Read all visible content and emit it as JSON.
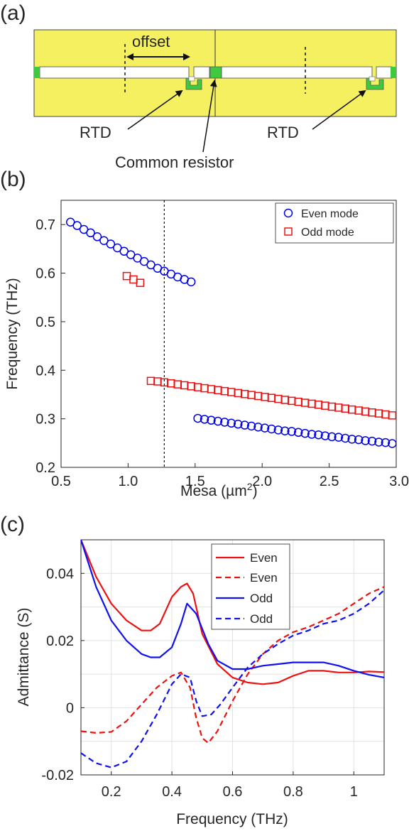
{
  "panel_a": {
    "label": "(a)",
    "offset_label": "offset",
    "rtd_left": "RTD",
    "rtd_right": "RTD",
    "common_resistor": "Common resistor"
  },
  "panel_b": {
    "label": "(b)",
    "xlabel": "Mesa (µm",
    "xlabel_sup": "2",
    "xlabel_tail": ")",
    "ylabel": "Frequency (THz)",
    "legend": [
      "Even mode",
      "Odd mode"
    ]
  },
  "panel_c": {
    "label": "(c)",
    "xlabel": "Frequency (THz)",
    "ylabel": "Admittance (S)",
    "legend": [
      "Even",
      "Even",
      "Odd",
      "Odd"
    ]
  },
  "colors": {
    "even": "#0000ee",
    "odd": "#ee1111",
    "even_c": "#ee1111",
    "odd_c": "#1111ee",
    "device_yellow": "#f4f060",
    "contact_green": "#3fc93f"
  },
  "chart_data": [
    {
      "id": "b",
      "type": "scatter",
      "xlabel": "Mesa (µm²)",
      "ylabel": "Frequency (THz)",
      "xlim": [
        0.5,
        3.0
      ],
      "ylim": [
        0.2,
        0.75
      ],
      "xticks": [
        "0.5",
        "1.0",
        "1.5",
        "2.0",
        "2.5",
        "3.0"
      ],
      "yticks": [
        "0.2",
        "0.3",
        "0.4",
        "0.5",
        "0.6",
        "0.7"
      ],
      "vline_x": 1.27,
      "grid": false,
      "legend_position": "top-right",
      "series": [
        {
          "name": "Even mode",
          "marker": "circle",
          "x": [
            0.57,
            0.62,
            0.67,
            0.72,
            0.77,
            0.82,
            0.87,
            0.92,
            0.97,
            1.02,
            1.07,
            1.12,
            1.17,
            1.22,
            1.27,
            1.32,
            1.37,
            1.42,
            1.47,
            1.52,
            1.57,
            1.62,
            1.67,
            1.72,
            1.77,
            1.82,
            1.87,
            1.92,
            1.97,
            2.02,
            2.07,
            2.12,
            2.17,
            2.22,
            2.27,
            2.32,
            2.37,
            2.42,
            2.47,
            2.52,
            2.57,
            2.62,
            2.67,
            2.72,
            2.77,
            2.82,
            2.87,
            2.92,
            2.97
          ],
          "y": [
            0.705,
            0.698,
            0.69,
            0.683,
            0.675,
            0.667,
            0.66,
            0.652,
            0.645,
            0.638,
            0.631,
            0.624,
            0.617,
            0.61,
            0.604,
            0.598,
            0.592,
            0.587,
            0.582,
            0.301,
            0.299,
            0.297,
            0.295,
            0.293,
            0.291,
            0.289,
            0.287,
            0.285,
            0.283,
            0.281,
            0.279,
            0.277,
            0.275,
            0.274,
            0.272,
            0.27,
            0.268,
            0.267,
            0.265,
            0.263,
            0.262,
            0.26,
            0.258,
            0.257,
            0.255,
            0.254,
            0.252,
            0.251,
            0.249
          ]
        },
        {
          "name": "Odd mode",
          "marker": "square",
          "x": [
            0.99,
            1.04,
            1.09,
            1.17,
            1.22,
            1.27,
            1.32,
            1.37,
            1.42,
            1.47,
            1.52,
            1.57,
            1.62,
            1.67,
            1.72,
            1.77,
            1.82,
            1.87,
            1.92,
            1.97,
            2.02,
            2.07,
            2.12,
            2.17,
            2.22,
            2.27,
            2.32,
            2.37,
            2.42,
            2.47,
            2.52,
            2.57,
            2.62,
            2.67,
            2.72,
            2.77,
            2.82,
            2.87,
            2.92,
            2.97
          ],
          "y": [
            0.594,
            0.587,
            0.58,
            0.378,
            0.377,
            0.375,
            0.373,
            0.371,
            0.369,
            0.367,
            0.365,
            0.363,
            0.361,
            0.359,
            0.357,
            0.355,
            0.353,
            0.351,
            0.349,
            0.347,
            0.345,
            0.343,
            0.341,
            0.339,
            0.337,
            0.335,
            0.333,
            0.331,
            0.329,
            0.327,
            0.325,
            0.323,
            0.321,
            0.319,
            0.317,
            0.315,
            0.313,
            0.311,
            0.309,
            0.307
          ]
        }
      ]
    },
    {
      "id": "c",
      "type": "line",
      "xlabel": "Frequency (THz)",
      "ylabel": "Admittance (S)",
      "xlim": [
        0.1,
        1.1
      ],
      "ylim": [
        -0.02,
        0.05
      ],
      "xticks": [
        "0.2",
        "0.4",
        "0.6",
        "0.8",
        "1"
      ],
      "yticks": [
        "-0.02",
        "0",
        "0.02",
        "0.04"
      ],
      "grid": true,
      "legend_position": "top-right",
      "series": [
        {
          "name": "Even",
          "style": "solid",
          "x": [
            0.1,
            0.15,
            0.2,
            0.25,
            0.3,
            0.33,
            0.36,
            0.4,
            0.43,
            0.45,
            0.47,
            0.5,
            0.55,
            0.6,
            0.65,
            0.7,
            0.75,
            0.8,
            0.85,
            0.9,
            0.95,
            1.0,
            1.05,
            1.1
          ],
          "y": [
            0.05,
            0.039,
            0.031,
            0.026,
            0.023,
            0.023,
            0.025,
            0.033,
            0.036,
            0.037,
            0.034,
            0.022,
            0.013,
            0.009,
            0.0075,
            0.007,
            0.0075,
            0.0095,
            0.011,
            0.011,
            0.0105,
            0.0105,
            0.0108,
            0.0106
          ]
        },
        {
          "name": "Even",
          "style": "dashed",
          "x": [
            0.1,
            0.15,
            0.2,
            0.25,
            0.3,
            0.35,
            0.4,
            0.43,
            0.46,
            0.48,
            0.5,
            0.52,
            0.55,
            0.6,
            0.65,
            0.7,
            0.75,
            0.8,
            0.85,
            0.9,
            0.95,
            1.0,
            1.05,
            1.1
          ],
          "y": [
            -0.007,
            -0.0075,
            -0.0072,
            -0.004,
            0.001,
            0.006,
            0.0095,
            0.0105,
            0.006,
            -0.003,
            -0.009,
            -0.0105,
            -0.007,
            0.002,
            0.01,
            0.016,
            0.02,
            0.0225,
            0.024,
            0.026,
            0.028,
            0.031,
            0.034,
            0.036
          ]
        },
        {
          "name": "Odd",
          "style": "solid",
          "x": [
            0.1,
            0.15,
            0.2,
            0.25,
            0.3,
            0.33,
            0.36,
            0.4,
            0.43,
            0.45,
            0.48,
            0.52,
            0.55,
            0.6,
            0.65,
            0.7,
            0.75,
            0.8,
            0.85,
            0.9,
            0.95,
            1.0,
            1.05,
            1.1
          ],
          "y": [
            0.05,
            0.036,
            0.026,
            0.02,
            0.016,
            0.015,
            0.015,
            0.018,
            0.025,
            0.031,
            0.028,
            0.019,
            0.014,
            0.0115,
            0.0115,
            0.0125,
            0.013,
            0.0135,
            0.0135,
            0.0135,
            0.0125,
            0.011,
            0.0098,
            0.009
          ]
        },
        {
          "name": "Odd",
          "style": "dashed",
          "x": [
            0.1,
            0.15,
            0.2,
            0.25,
            0.3,
            0.35,
            0.4,
            0.43,
            0.46,
            0.48,
            0.5,
            0.53,
            0.56,
            0.6,
            0.65,
            0.7,
            0.75,
            0.8,
            0.85,
            0.9,
            0.95,
            1.0,
            1.05,
            1.1
          ],
          "y": [
            -0.0135,
            -0.0165,
            -0.0178,
            -0.016,
            -0.01,
            -0.002,
            0.007,
            0.01,
            0.009,
            0.002,
            -0.0025,
            -0.002,
            0.001,
            0.006,
            0.012,
            0.016,
            0.019,
            0.0215,
            0.023,
            0.025,
            0.026,
            0.028,
            0.031,
            0.035
          ]
        }
      ]
    }
  ]
}
